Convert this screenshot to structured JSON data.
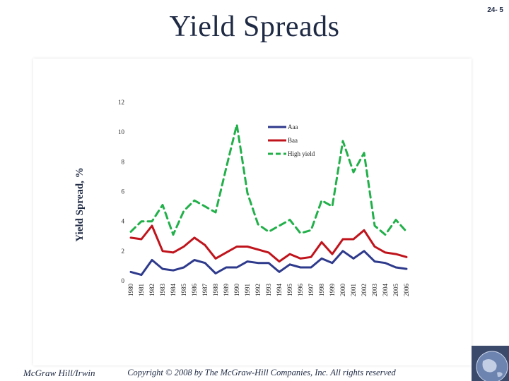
{
  "slide": {
    "number": "24- 5",
    "title": "Yield Spreads",
    "footer_left": "McGraw Hill/Irwin",
    "footer_copyright": "Copyright © 2008 by The McGraw-Hill Companies, Inc. All rights reserved"
  },
  "chart_data": {
    "type": "line",
    "title": "",
    "xlabel": "",
    "ylabel": "Yield Spread, %",
    "ylim": [
      0,
      12
    ],
    "yticks": [
      "0",
      "2",
      "4",
      "6",
      "8",
      "10",
      "12"
    ],
    "grid": false,
    "legend_position": "top-right",
    "categories": [
      "1980",
      "1981",
      "1982",
      "1983",
      "1984",
      "1985",
      "1986",
      "1987",
      "1988",
      "1989",
      "1990",
      "1991",
      "1992",
      "1993",
      "1994",
      "1995",
      "1996",
      "1997",
      "1998",
      "1999",
      "2000",
      "2001",
      "2002",
      "2003",
      "2004",
      "2005",
      "2006"
    ],
    "series": [
      {
        "name": "Aaa",
        "color": "#2e3a8c",
        "style": "solid",
        "values": [
          0.6,
          0.4,
          1.4,
          0.8,
          0.7,
          0.9,
          1.4,
          1.2,
          0.5,
          0.9,
          0.9,
          1.3,
          1.2,
          1.2,
          0.6,
          1.1,
          0.9,
          0.9,
          1.5,
          1.2,
          2.0,
          1.5,
          2.0,
          1.3,
          1.2,
          0.9,
          0.8
        ]
      },
      {
        "name": "Baa",
        "color": "#c0141c",
        "style": "solid",
        "values": [
          2.9,
          2.8,
          3.7,
          2.0,
          1.9,
          2.3,
          2.9,
          2.4,
          1.5,
          1.9,
          2.3,
          2.3,
          2.1,
          1.9,
          1.3,
          1.8,
          1.5,
          1.6,
          2.6,
          1.8,
          2.8,
          2.8,
          3.4,
          2.3,
          1.9,
          1.8,
          1.6
        ]
      },
      {
        "name": "High yield",
        "color": "#22b04a",
        "style": "dashed",
        "values": [
          3.3,
          4.0,
          4.0,
          5.1,
          3.1,
          4.7,
          5.4,
          5.0,
          4.6,
          7.6,
          10.5,
          5.9,
          3.8,
          3.3,
          3.7,
          4.1,
          3.2,
          3.4,
          5.4,
          5.0,
          9.4,
          7.3,
          8.6,
          3.7,
          3.1,
          4.1,
          3.3
        ]
      }
    ]
  }
}
